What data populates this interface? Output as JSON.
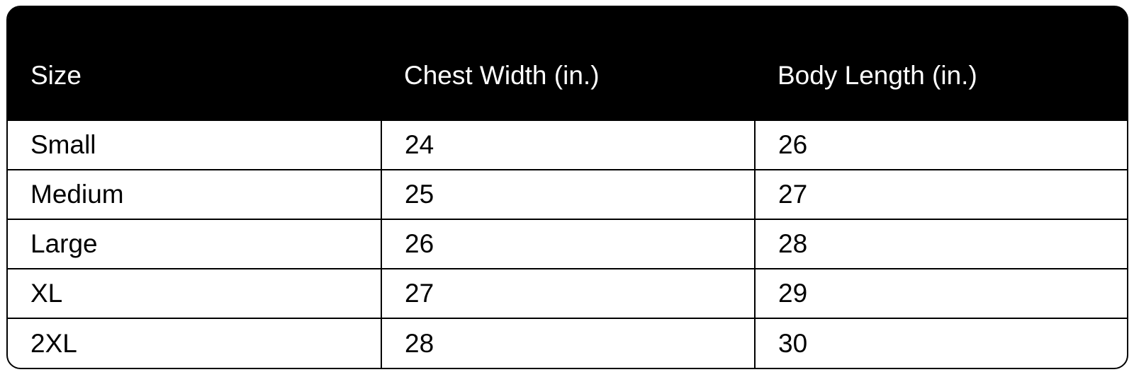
{
  "table": {
    "headers": [
      "Size",
      "Chest Width (in.)",
      "Body Length (in.)"
    ],
    "rows": [
      [
        "Small",
        "24",
        "26"
      ],
      [
        "Medium",
        "25",
        "27"
      ],
      [
        "Large",
        "26",
        "28"
      ],
      [
        "XL",
        "27",
        "29"
      ],
      [
        "2XL",
        "28",
        "30"
      ]
    ]
  }
}
